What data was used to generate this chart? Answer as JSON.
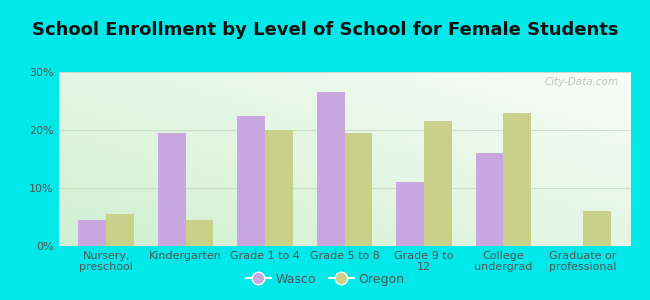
{
  "title": "School Enrollment by Level of School for Female Students",
  "categories": [
    "Nursery,\npreschool",
    "Kindergarten",
    "Grade 1 to 4",
    "Grade 5 to 8",
    "Grade 9 to\n12",
    "College\nundergrad",
    "Graduate or\nprofessional"
  ],
  "wasco_values": [
    4.5,
    19.5,
    22.5,
    26.5,
    11.0,
    16.0,
    0
  ],
  "oregon_values": [
    5.5,
    4.5,
    20.0,
    19.5,
    21.5,
    23.0,
    6.0
  ],
  "wasco_color": "#c9a8e0",
  "oregon_color": "#c8d08a",
  "background_outer": "#00e8e8",
  "background_inner_top": "#f5fdf0",
  "background_inner_bottom": "#d8f0d8",
  "ylim": [
    0,
    30
  ],
  "yticks": [
    0,
    10,
    20,
    30
  ],
  "ytick_labels": [
    "0%",
    "10%",
    "20%",
    "30%"
  ],
  "bar_width": 0.35,
  "title_fontsize": 13,
  "tick_fontsize": 8,
  "legend_labels": [
    "Wasco",
    "Oregon"
  ],
  "watermark": "City-Data.com",
  "grid_color": "#ccddcc",
  "tick_color": "#555555"
}
